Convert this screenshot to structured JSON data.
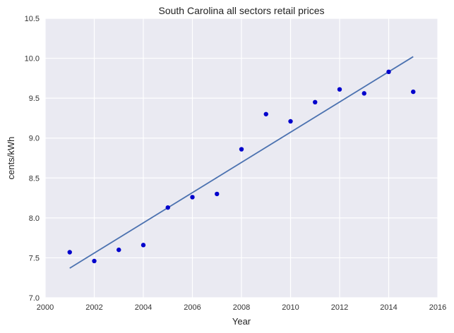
{
  "chart_data": {
    "type": "scatter",
    "title": "South Carolina   all sectors retail prices",
    "xlabel": "Year",
    "ylabel": "cents/kWh",
    "xlim": [
      2000,
      2016
    ],
    "ylim": [
      7.0,
      10.5
    ],
    "xticks": [
      2000,
      2002,
      2004,
      2006,
      2008,
      2010,
      2012,
      2014,
      2016
    ],
    "yticks": [
      "7.0",
      "7.5",
      "8.0",
      "8.5",
      "9.0",
      "9.5",
      "10.0",
      "10.5"
    ],
    "grid": true,
    "legend": "none",
    "colors": {
      "background": "#eaeaf2",
      "grid": "#ffffff",
      "points": "#0000cc",
      "fit_line": "#4c72b0"
    },
    "series": [
      {
        "type": "scatter",
        "x": [
          2001,
          2002,
          2003,
          2004,
          2005,
          2006,
          2007,
          2008,
          2009,
          2010,
          2011,
          2012,
          2013,
          2014,
          2015
        ],
        "y": [
          7.57,
          7.46,
          7.6,
          7.66,
          8.13,
          8.26,
          8.3,
          8.86,
          9.3,
          9.21,
          9.45,
          9.61,
          9.56,
          9.83,
          9.58
        ]
      },
      {
        "type": "line",
        "x": [
          2001,
          2015
        ],
        "y": [
          7.37,
          10.02
        ]
      }
    ]
  }
}
